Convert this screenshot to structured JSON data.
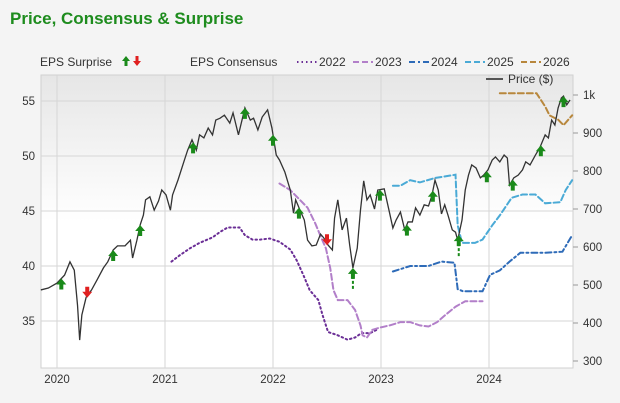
{
  "title": "Price, Consensus & Surprise",
  "colors": {
    "title": "#1e8c1e",
    "up": "#1a8a1a",
    "down": "#e02020",
    "price": "#333333",
    "2022": "#6b2f96",
    "2023": "#b27fc9",
    "2024": "#2e6bb8",
    "2025": "#4aaad6",
    "2026": "#b8873c"
  },
  "chart_data": {
    "type": "line",
    "title": "Price, Consensus & Surprise",
    "legend": {
      "surprise_label": "EPS Surprise",
      "surprise_icons": [
        "up-arrow",
        "down-arrow"
      ],
      "consensus_label": "EPS Consensus",
      "price_label": "Price ($)",
      "placement": "top"
    },
    "x_axis": {
      "ticks": [
        "2020",
        "2021",
        "2022",
        "2023",
        "2024"
      ],
      "range": [
        2019.85,
        2024.8
      ]
    },
    "y_left": {
      "ticks": [
        "55",
        "50",
        "45",
        "40",
        "35"
      ],
      "range": [
        32.2,
        57.5
      ]
    },
    "y_right": {
      "ticks": [
        "1k",
        "900",
        "800",
        "700",
        "600",
        "500",
        "400",
        "300"
      ],
      "range": [
        280,
        1050
      ]
    },
    "grid": true,
    "price": [
      [
        2019.85,
        487
      ],
      [
        2019.92,
        492
      ],
      [
        2020.0,
        505
      ],
      [
        2020.07,
        526
      ],
      [
        2020.12,
        561
      ],
      [
        2020.16,
        539
      ],
      [
        2020.19,
        447
      ],
      [
        2020.21,
        355
      ],
      [
        2020.23,
        421
      ],
      [
        2020.27,
        468
      ],
      [
        2020.32,
        487
      ],
      [
        2020.37,
        513
      ],
      [
        2020.43,
        545
      ],
      [
        2020.47,
        561
      ],
      [
        2020.52,
        592
      ],
      [
        2020.56,
        603
      ],
      [
        2020.63,
        603
      ],
      [
        2020.68,
        618
      ],
      [
        2020.7,
        571
      ],
      [
        2020.74,
        618
      ],
      [
        2020.77,
        658
      ],
      [
        2020.8,
        684
      ],
      [
        2020.82,
        724
      ],
      [
        2020.86,
        732
      ],
      [
        2020.9,
        697
      ],
      [
        2020.94,
        721
      ],
      [
        2020.97,
        750
      ],
      [
        2021.01,
        737
      ],
      [
        2021.05,
        697
      ],
      [
        2021.07,
        737
      ],
      [
        2021.12,
        776
      ],
      [
        2021.18,
        829
      ],
      [
        2021.21,
        855
      ],
      [
        2021.25,
        882
      ],
      [
        2021.29,
        855
      ],
      [
        2021.32,
        895
      ],
      [
        2021.36,
        887
      ],
      [
        2021.4,
        913
      ],
      [
        2021.44,
        895
      ],
      [
        2021.47,
        934
      ],
      [
        2021.51,
        939
      ],
      [
        2021.55,
        947
      ],
      [
        2021.6,
        926
      ],
      [
        2021.63,
        953
      ],
      [
        2021.68,
        895
      ],
      [
        2021.74,
        966
      ],
      [
        2021.79,
        934
      ],
      [
        2021.82,
        939
      ],
      [
        2021.86,
        908
      ],
      [
        2021.9,
        942
      ],
      [
        2021.95,
        961
      ],
      [
        2021.99,
        913
      ],
      [
        2022.03,
        842
      ],
      [
        2022.06,
        829
      ],
      [
        2022.11,
        797
      ],
      [
        2022.16,
        750
      ],
      [
        2022.19,
        689
      ],
      [
        2022.21,
        724
      ],
      [
        2022.25,
        697
      ],
      [
        2022.29,
        671
      ],
      [
        2022.32,
        618
      ],
      [
        2022.36,
        603
      ],
      [
        2022.4,
        605
      ],
      [
        2022.44,
        634
      ],
      [
        2022.47,
        624
      ],
      [
        2022.51,
        605
      ],
      [
        2022.55,
        592
      ],
      [
        2022.57,
        676
      ],
      [
        2022.6,
        724
      ],
      [
        2022.64,
        645
      ],
      [
        2022.68,
        676
      ],
      [
        2022.71,
        605
      ],
      [
        2022.74,
        545
      ],
      [
        2022.78,
        597
      ],
      [
        2022.81,
        697
      ],
      [
        2022.84,
        774
      ],
      [
        2022.87,
        724
      ],
      [
        2022.9,
        737
      ],
      [
        2022.94,
        700
      ],
      [
        2022.97,
        750
      ],
      [
        2023.03,
        753
      ],
      [
        2023.08,
        689
      ],
      [
        2023.11,
        650
      ],
      [
        2023.14,
        671
      ],
      [
        2023.18,
        692
      ],
      [
        2023.22,
        645
      ],
      [
        2023.25,
        666
      ],
      [
        2023.29,
        666
      ],
      [
        2023.32,
        703
      ],
      [
        2023.36,
        684
      ],
      [
        2023.4,
        711
      ],
      [
        2023.44,
        708
      ],
      [
        2023.47,
        734
      ],
      [
        2023.5,
        776
      ],
      [
        2023.53,
        750
      ],
      [
        2023.56,
        687
      ],
      [
        2023.59,
        711
      ],
      [
        2023.62,
        684
      ],
      [
        2023.66,
        645
      ],
      [
        2023.69,
        639
      ],
      [
        2023.71,
        618
      ],
      [
        2023.75,
        671
      ],
      [
        2023.78,
        750
      ],
      [
        2023.81,
        789
      ],
      [
        2023.84,
        816
      ],
      [
        2023.88,
        808
      ],
      [
        2023.92,
        782
      ],
      [
        2023.95,
        789
      ],
      [
        2023.99,
        803
      ],
      [
        2024.03,
        829
      ],
      [
        2024.06,
        837
      ],
      [
        2024.1,
        824
      ],
      [
        2024.14,
        842
      ],
      [
        2024.17,
        834
      ],
      [
        2024.19,
        763
      ],
      [
        2024.23,
        782
      ],
      [
        2024.27,
        789
      ],
      [
        2024.31,
        803
      ],
      [
        2024.34,
        824
      ],
      [
        2024.38,
        816
      ],
      [
        2024.43,
        842
      ],
      [
        2024.47,
        861
      ],
      [
        2024.52,
        895
      ],
      [
        2024.55,
        887
      ],
      [
        2024.58,
        934
      ],
      [
        2024.61,
        921
      ],
      [
        2024.64,
        966
      ],
      [
        2024.67,
        992
      ],
      [
        2024.69,
        997
      ],
      [
        2024.72,
        974
      ],
      [
        2024.75,
        987
      ]
    ],
    "consensus": [
      {
        "name": "2022",
        "style": "dotted",
        "points": [
          [
            2021.06,
            40.4
          ],
          [
            2021.14,
            41.0
          ],
          [
            2021.23,
            41.6
          ],
          [
            2021.32,
            42.1
          ],
          [
            2021.44,
            42.6
          ],
          [
            2021.51,
            43.1
          ],
          [
            2021.58,
            43.5
          ],
          [
            2021.69,
            43.5
          ],
          [
            2021.74,
            42.8
          ],
          [
            2021.81,
            42.4
          ],
          [
            2021.88,
            42.4
          ],
          [
            2021.97,
            42.5
          ],
          [
            2022.06,
            42.2
          ],
          [
            2022.16,
            41.5
          ],
          [
            2022.22,
            40.5
          ],
          [
            2022.28,
            39.2
          ],
          [
            2022.34,
            37.8
          ],
          [
            2022.42,
            36.9
          ],
          [
            2022.46,
            35.5
          ],
          [
            2022.51,
            34.0
          ],
          [
            2022.6,
            33.7
          ],
          [
            2022.69,
            33.3
          ],
          [
            2022.76,
            33.5
          ],
          [
            2022.82,
            33.9
          ],
          [
            2022.9,
            33.9
          ],
          [
            2022.96,
            34.2
          ]
        ]
      },
      {
        "name": "2023",
        "style": "dashed",
        "points": [
          [
            2022.06,
            47.5
          ],
          [
            2022.16,
            46.9
          ],
          [
            2022.25,
            46.0
          ],
          [
            2022.32,
            45.3
          ],
          [
            2022.39,
            43.9
          ],
          [
            2022.45,
            42.5
          ],
          [
            2022.49,
            41.6
          ],
          [
            2022.53,
            39.8
          ],
          [
            2022.56,
            37.8
          ],
          [
            2022.6,
            36.9
          ],
          [
            2022.69,
            36.9
          ],
          [
            2022.76,
            36.0
          ],
          [
            2022.81,
            34.6
          ],
          [
            2022.83,
            33.7
          ],
          [
            2022.87,
            33.5
          ],
          [
            2022.92,
            34.2
          ],
          [
            2022.99,
            34.4
          ],
          [
            2023.08,
            34.6
          ],
          [
            2023.18,
            34.9
          ],
          [
            2023.27,
            34.9
          ],
          [
            2023.36,
            34.6
          ],
          [
            2023.44,
            34.5
          ],
          [
            2023.52,
            34.9
          ],
          [
            2023.59,
            35.5
          ],
          [
            2023.69,
            36.3
          ],
          [
            2023.78,
            36.8
          ],
          [
            2023.94,
            36.8
          ]
        ]
      },
      {
        "name": "2024",
        "style": "dashdot",
        "points": [
          [
            2023.11,
            39.5
          ],
          [
            2023.27,
            40.0
          ],
          [
            2023.44,
            40.0
          ],
          [
            2023.56,
            40.4
          ],
          [
            2023.68,
            40.3
          ],
          [
            2023.71,
            37.9
          ],
          [
            2023.76,
            37.7
          ],
          [
            2023.94,
            37.7
          ],
          [
            2024.01,
            39.2
          ],
          [
            2024.1,
            39.6
          ],
          [
            2024.19,
            40.4
          ],
          [
            2024.29,
            41.2
          ],
          [
            2024.52,
            41.2
          ],
          [
            2024.68,
            41.3
          ],
          [
            2024.77,
            42.8
          ]
        ]
      },
      {
        "name": "2025",
        "style": "dashed",
        "points": [
          [
            2023.11,
            47.3
          ],
          [
            2023.18,
            47.3
          ],
          [
            2023.27,
            47.8
          ],
          [
            2023.36,
            47.6
          ],
          [
            2023.5,
            48.0
          ],
          [
            2023.69,
            48.3
          ],
          [
            2023.71,
            43.7
          ],
          [
            2023.75,
            42.1
          ],
          [
            2023.87,
            42.1
          ],
          [
            2023.94,
            42.4
          ],
          [
            2024.03,
            43.7
          ],
          [
            2024.1,
            44.6
          ],
          [
            2024.21,
            46.2
          ],
          [
            2024.31,
            46.5
          ],
          [
            2024.43,
            46.5
          ],
          [
            2024.52,
            45.7
          ],
          [
            2024.66,
            45.8
          ],
          [
            2024.71,
            46.9
          ],
          [
            2024.77,
            47.8
          ]
        ]
      },
      {
        "name": "2026",
        "style": "dashed",
        "points": [
          [
            2024.1,
            55.7
          ],
          [
            2024.44,
            55.7
          ],
          [
            2024.52,
            54.5
          ],
          [
            2024.56,
            53.7
          ],
          [
            2024.64,
            53.3
          ],
          [
            2024.69,
            52.8
          ],
          [
            2024.77,
            53.7
          ]
        ]
      }
    ],
    "surprises": [
      {
        "date": 2020.04,
        "dir": "up"
      },
      {
        "date": 2020.28,
        "dir": "down"
      },
      {
        "date": 2020.52,
        "dir": "up"
      },
      {
        "date": 2020.77,
        "dir": "up"
      },
      {
        "date": 2021.26,
        "dir": "up"
      },
      {
        "date": 2021.74,
        "dir": "up"
      },
      {
        "date": 2022.0,
        "dir": "up"
      },
      {
        "date": 2022.24,
        "dir": "up"
      },
      {
        "date": 2022.5,
        "dir": "down"
      },
      {
        "date": 2022.74,
        "dir": "up",
        "stem": true
      },
      {
        "date": 2022.99,
        "dir": "up"
      },
      {
        "date": 2023.24,
        "dir": "up"
      },
      {
        "date": 2023.48,
        "dir": "up"
      },
      {
        "date": 2023.72,
        "dir": "up",
        "stem": true
      },
      {
        "date": 2023.98,
        "dir": "up"
      },
      {
        "date": 2024.22,
        "dir": "up"
      },
      {
        "date": 2024.48,
        "dir": "up"
      },
      {
        "date": 2024.69,
        "dir": "up"
      }
    ]
  }
}
